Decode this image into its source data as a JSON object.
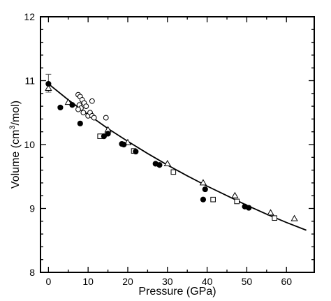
{
  "chart_data": {
    "type": "scatter",
    "title": "",
    "xlabel": "Pressure (GPa)",
    "ylabel_main": "Volume (cm",
    "ylabel_sup": "3",
    "ylabel_unit": "/mol)",
    "xlim": [
      -2,
      67
    ],
    "ylim": [
      8,
      12
    ],
    "xticks": [
      0,
      10,
      20,
      30,
      40,
      50,
      60
    ],
    "yticks": [
      8,
      9,
      10,
      11,
      12
    ],
    "grid": false,
    "legend": "none",
    "series": [
      {
        "marker": "filled-circle",
        "x": [
          0,
          3,
          6,
          8,
          14,
          15,
          18.5,
          19,
          22,
          27,
          28,
          39,
          39.5,
          49.5,
          50.5
        ],
        "y": [
          10.95,
          10.58,
          10.62,
          10.33,
          10.13,
          10.17,
          10.01,
          10.0,
          9.89,
          9.7,
          9.68,
          9.14,
          9.3,
          9.03,
          9.01
        ]
      },
      {
        "marker": "open-circle",
        "x": [
          7.5,
          8,
          8.5,
          7.8,
          9,
          9.5,
          8.2,
          7.5,
          8.8,
          10,
          10.5,
          11,
          11,
          14.5,
          11.5
        ],
        "y": [
          10.78,
          10.75,
          10.7,
          10.62,
          10.65,
          10.6,
          10.57,
          10.55,
          10.5,
          10.45,
          10.5,
          10.68,
          10.45,
          10.42,
          10.42
        ]
      },
      {
        "marker": "open-triangle",
        "x": [
          0,
          5,
          15,
          20,
          30,
          39,
          47,
          56,
          62
        ],
        "y": [
          10.88,
          10.66,
          10.23,
          10.03,
          9.7,
          9.4,
          9.2,
          8.93,
          8.84
        ]
      },
      {
        "marker": "open-square",
        "x": [
          13,
          21.5,
          31.5,
          41.5,
          47.5,
          57
        ],
        "y": [
          10.13,
          9.9,
          9.57,
          9.14,
          9.11,
          8.85
        ]
      }
    ],
    "error_bars": [
      {
        "x": 0,
        "y": 10.95,
        "low": 10.82,
        "high": 11.1
      }
    ],
    "fit_curve": {
      "x": [
        0,
        5,
        10,
        15,
        20,
        25,
        30,
        35,
        40,
        45,
        50,
        55,
        60,
        65
      ],
      "y": [
        10.95,
        10.7,
        10.47,
        10.25,
        10.05,
        9.86,
        9.68,
        9.51,
        9.35,
        9.2,
        9.05,
        8.91,
        8.78,
        8.66
      ]
    }
  }
}
